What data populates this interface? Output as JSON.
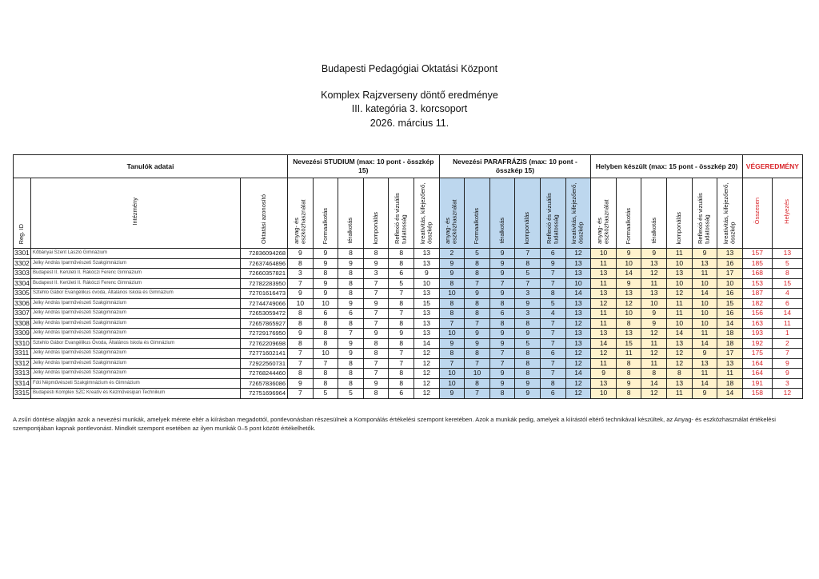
{
  "header": {
    "org": "Budapesti Pedagógiai Oktatási Központ",
    "title": "Komplex Rajzverseny döntő eredménye",
    "category": "III. kategória 3. korcsoport",
    "date": "2026. március 11."
  },
  "colors": {
    "parafrazis_fill": "#bdd7ee",
    "helyben_fill": "#fff2cc",
    "result_text": "#d9262b"
  },
  "table": {
    "groups": {
      "student": "Tanulók adatai",
      "studium": "Nevezési STUDIUM (max: 10 pont - összkép 15)",
      "parafrazis": "Nevezési PARAFRÁZIS (max: 10 pont - összkép 15)",
      "helyben": "Helyben készült (max: 15 pont - összkép 20)",
      "result": "VÉGEREDMÉNY"
    },
    "columns": {
      "reg": "Reg. ID",
      "school": "Intézmény",
      "oid": "Oktatási azonosító",
      "criteria": [
        "anyag- és eszközhasználat",
        "Formaalkotás",
        "téralkotás",
        "komponálás",
        "Reflexió és vizuális tudatosság",
        "kreativitás, kifejezőerő, összkép"
      ],
      "total": "Összesen",
      "rank": "Helyezés"
    },
    "rows": [
      {
        "reg": "3301",
        "school": "Kőbányai Szent László Gimnázium",
        "oid": "72836094268",
        "studium": [
          "9",
          "9",
          "8",
          "8",
          "8",
          "13"
        ],
        "parafrazis": [
          "2",
          "5",
          "9",
          "7",
          "6",
          "12"
        ],
        "helyben": [
          "10",
          "9",
          "9",
          "11",
          "9",
          "13"
        ],
        "total": "157",
        "rank": "13"
      },
      {
        "reg": "3302",
        "school": "Jelky András Iparművészeti Szakgimnázium",
        "oid": "72637464896",
        "studium": [
          "8",
          "9",
          "9",
          "9",
          "8",
          "13"
        ],
        "parafrazis": [
          "9",
          "8",
          "9",
          "8",
          "9",
          "13"
        ],
        "helyben": [
          "11",
          "10",
          "13",
          "10",
          "13",
          "16"
        ],
        "total": "185",
        "rank": "5"
      },
      {
        "reg": "3303",
        "school": "Budapest II. Kerületi II. Rákóczi Ferenc Gimnázium",
        "oid": "72660357821",
        "studium": [
          "3",
          "8",
          "8",
          "3",
          "6",
          "9"
        ],
        "parafrazis": [
          "9",
          "8",
          "9",
          "5",
          "7",
          "13"
        ],
        "helyben": [
          "13",
          "14",
          "12",
          "13",
          "11",
          "17"
        ],
        "total": "168",
        "rank": "8"
      },
      {
        "reg": "3304",
        "school": "Budapest II. Kerületi II. Rákóczi Ferenc Gimnázium",
        "oid": "72782283950",
        "studium": [
          "7",
          "9",
          "8",
          "7",
          "5",
          "10"
        ],
        "parafrazis": [
          "8",
          "7",
          "7",
          "7",
          "7",
          "10"
        ],
        "helyben": [
          "11",
          "9",
          "11",
          "10",
          "10",
          "10"
        ],
        "total": "153",
        "rank": "15"
      },
      {
        "reg": "3305",
        "school": "Sztehlo Gábor Evangélikus óvoda, Általános Iskola és Gimnázium",
        "oid": "72701616473",
        "studium": [
          "9",
          "9",
          "8",
          "7",
          "7",
          "13"
        ],
        "parafrazis": [
          "10",
          "9",
          "9",
          "3",
          "8",
          "14"
        ],
        "helyben": [
          "13",
          "13",
          "13",
          "12",
          "14",
          "16"
        ],
        "total": "187",
        "rank": "4"
      },
      {
        "reg": "3306",
        "school": "Jelky András Iparművészeti Szakgimnázium",
        "oid": "72744749066",
        "studium": [
          "10",
          "10",
          "9",
          "9",
          "8",
          "15"
        ],
        "parafrazis": [
          "8",
          "8",
          "8",
          "9",
          "5",
          "13"
        ],
        "helyben": [
          "12",
          "12",
          "10",
          "11",
          "10",
          "15"
        ],
        "total": "182",
        "rank": "6"
      },
      {
        "reg": "3307",
        "school": "Jelky András Iparművészeti Szakgimnázium",
        "oid": "72653059472",
        "studium": [
          "8",
          "6",
          "6",
          "7",
          "7",
          "13"
        ],
        "parafrazis": [
          "8",
          "8",
          "6",
          "3",
          "4",
          "13"
        ],
        "helyben": [
          "11",
          "10",
          "9",
          "11",
          "10",
          "16"
        ],
        "total": "156",
        "rank": "14"
      },
      {
        "reg": "3308",
        "school": "Jelky András Iparművészeti Szakgimnázium",
        "oid": "72657865927",
        "studium": [
          "8",
          "8",
          "8",
          "7",
          "8",
          "13"
        ],
        "parafrazis": [
          "7",
          "7",
          "8",
          "8",
          "7",
          "12"
        ],
        "helyben": [
          "11",
          "8",
          "9",
          "10",
          "10",
          "14"
        ],
        "total": "163",
        "rank": "11"
      },
      {
        "reg": "3309",
        "school": "Jelky András Iparművészeti Szakgimnázium",
        "oid": "72729176950",
        "studium": [
          "9",
          "8",
          "7",
          "9",
          "9",
          "13"
        ],
        "parafrazis": [
          "10",
          "9",
          "9",
          "9",
          "7",
          "13"
        ],
        "helyben": [
          "13",
          "13",
          "12",
          "14",
          "11",
          "18"
        ],
        "total": "193",
        "rank": "1"
      },
      {
        "reg": "3310",
        "school": "Sztehlo Gábor Evangélikus Óvoda, Általános Iskola és Gimnázium",
        "oid": "72762209698",
        "studium": [
          "8",
          "8",
          "9",
          "8",
          "8",
          "14"
        ],
        "parafrazis": [
          "9",
          "9",
          "9",
          "5",
          "7",
          "13"
        ],
        "helyben": [
          "14",
          "15",
          "11",
          "13",
          "14",
          "18"
        ],
        "total": "192",
        "rank": "2"
      },
      {
        "reg": "3311",
        "school": "Jelky András Iparművészeti Szakgimnázium",
        "oid": "72771602141",
        "studium": [
          "7",
          "10",
          "9",
          "8",
          "7",
          "12"
        ],
        "parafrazis": [
          "8",
          "8",
          "7",
          "8",
          "6",
          "12"
        ],
        "helyben": [
          "12",
          "11",
          "12",
          "12",
          "9",
          "17"
        ],
        "total": "175",
        "rank": "7"
      },
      {
        "reg": "3312",
        "school": "Jelky András Iparművészeti Szakgimnázium",
        "oid": "72922560731",
        "studium": [
          "7",
          "7",
          "8",
          "7",
          "7",
          "12"
        ],
        "parafrazis": [
          "7",
          "7",
          "7",
          "8",
          "7",
          "12"
        ],
        "helyben": [
          "11",
          "8",
          "11",
          "12",
          "13",
          "13"
        ],
        "total": "164",
        "rank": "9"
      },
      {
        "reg": "3313",
        "school": "Jelky András Iparművészeti Szakgimnázium",
        "oid": "72768244460",
        "studium": [
          "8",
          "8",
          "8",
          "7",
          "8",
          "12"
        ],
        "parafrazis": [
          "10",
          "10",
          "9",
          "8",
          "7",
          "14"
        ],
        "helyben": [
          "9",
          "8",
          "8",
          "8",
          "11",
          "11"
        ],
        "total": "164",
        "rank": "9"
      },
      {
        "reg": "3314",
        "school": "Fóti Népművészeti Szakgimnázium és Gimnázium",
        "oid": "72657836086",
        "studium": [
          "9",
          "8",
          "8",
          "9",
          "8",
          "12"
        ],
        "parafrazis": [
          "10",
          "8",
          "9",
          "9",
          "8",
          "12"
        ],
        "helyben": [
          "13",
          "9",
          "14",
          "13",
          "14",
          "18"
        ],
        "total": "191",
        "rank": "3"
      },
      {
        "reg": "3315",
        "school": "Budapesti Komplex SZC Kreatív és Kézművesipari Technikum",
        "oid": "72751696964",
        "studium": [
          "7",
          "5",
          "5",
          "8",
          "6",
          "12"
        ],
        "parafrazis": [
          "9",
          "7",
          "8",
          "9",
          "6",
          "12"
        ],
        "helyben": [
          "10",
          "8",
          "12",
          "11",
          "9",
          "14"
        ],
        "total": "158",
        "rank": "12"
      }
    ]
  },
  "footnote": "A zsűri döntése alapján azok a nevezési munkák, amelyek mérete eltér a kiírásban megadottól, pontlevonásban részesülnek a Komponálás értékelési szempont keretében. Azok a munkák pedig, amelyek a kiírástól eltérő technikával készültek, az Anyag- és eszközhasználat értékelési szempontjában kapnak pontlevonást. Mindkét szempont esetében az ilyen munkák 0–5 pont között értékelhetők."
}
